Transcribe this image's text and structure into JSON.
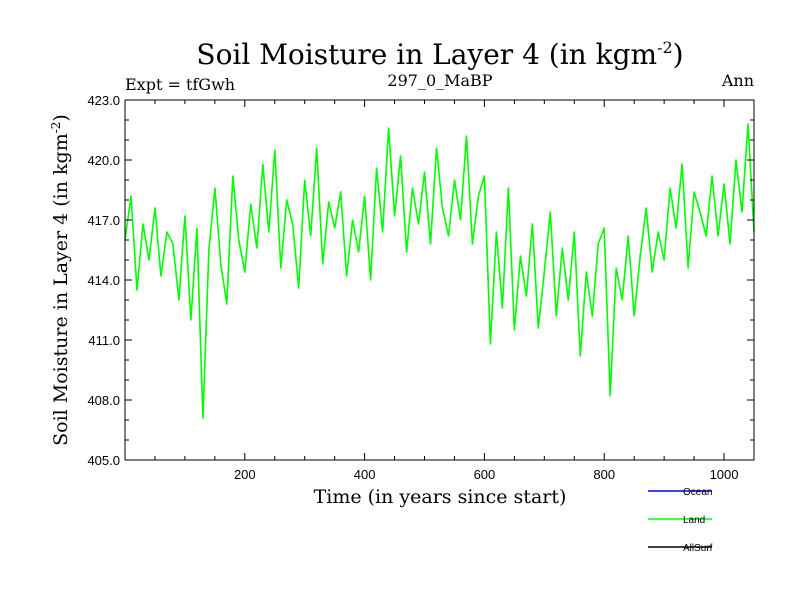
{
  "chart_data": {
    "type": "line",
    "title": "Soil Moisture in Layer 4 (in kgm",
    "title_superscript": "-2",
    "title_close": ")",
    "subtitle_left": "Expt = tfGwh",
    "subtitle_center": "297_0_MaBP",
    "subtitle_right": "Ann",
    "xlabel": "Time (in years since start)",
    "ylabel": "Soil Moisture in Layer 4 (in kgm",
    "ylabel_superscript": "-2",
    "ylabel_close": ")",
    "xlim": [
      0,
      1050
    ],
    "ylim": [
      405.0,
      423.0
    ],
    "xticks": [
      200,
      400,
      600,
      800,
      1000
    ],
    "xtick_labels": [
      "200",
      "400",
      "600",
      "800",
      "1000"
    ],
    "yticks": [
      405.0,
      408.0,
      411.0,
      414.0,
      417.0,
      420.0,
      423.0
    ],
    "ytick_labels": [
      "405.0",
      "408.0",
      "411.0",
      "414.0",
      "417.0",
      "420.0",
      "423.0"
    ],
    "series": [
      {
        "name": "Land",
        "color": "#00ff00",
        "x_start": 0,
        "x_step": 10,
        "values": [
          416.0,
          418.2,
          413.5,
          416.8,
          415.0,
          417.6,
          414.2,
          416.4,
          415.8,
          413.0,
          417.2,
          412.0,
          416.6,
          407.1,
          415.5,
          418.6,
          414.8,
          412.8,
          419.2,
          416.0,
          414.4,
          417.8,
          415.6,
          419.8,
          416.4,
          420.5,
          414.6,
          418.0,
          416.8,
          413.6,
          419.0,
          416.2,
          420.6,
          414.8,
          417.9,
          416.6,
          418.4,
          414.2,
          417.0,
          415.4,
          418.2,
          414.0,
          419.6,
          416.4,
          421.6,
          417.2,
          420.2,
          415.4,
          418.6,
          416.8,
          419.4,
          415.8,
          420.6,
          417.6,
          416.2,
          419.0,
          417.0,
          421.2,
          415.8,
          418.2,
          419.2,
          410.8,
          416.4,
          412.6,
          418.6,
          411.5,
          415.2,
          413.2,
          416.8,
          411.6,
          414.4,
          417.4,
          412.2,
          415.6,
          413.0,
          416.4,
          410.2,
          414.4,
          412.2,
          415.8,
          416.6,
          408.2,
          414.6,
          413.0,
          416.2,
          412.2,
          415.2,
          417.6,
          414.4,
          416.4,
          415.0,
          418.6,
          416.6,
          419.8,
          414.6,
          418.4,
          417.4,
          416.2,
          419.2,
          416.2,
          418.8,
          415.8,
          420.0,
          417.4,
          421.8,
          416.4
        ]
      }
    ],
    "legend": [
      {
        "label": "Ocean",
        "color": "#0000ff"
      },
      {
        "label": "Land",
        "color": "#00ff00"
      },
      {
        "label": "AllSurf",
        "color": "#000000"
      }
    ]
  }
}
